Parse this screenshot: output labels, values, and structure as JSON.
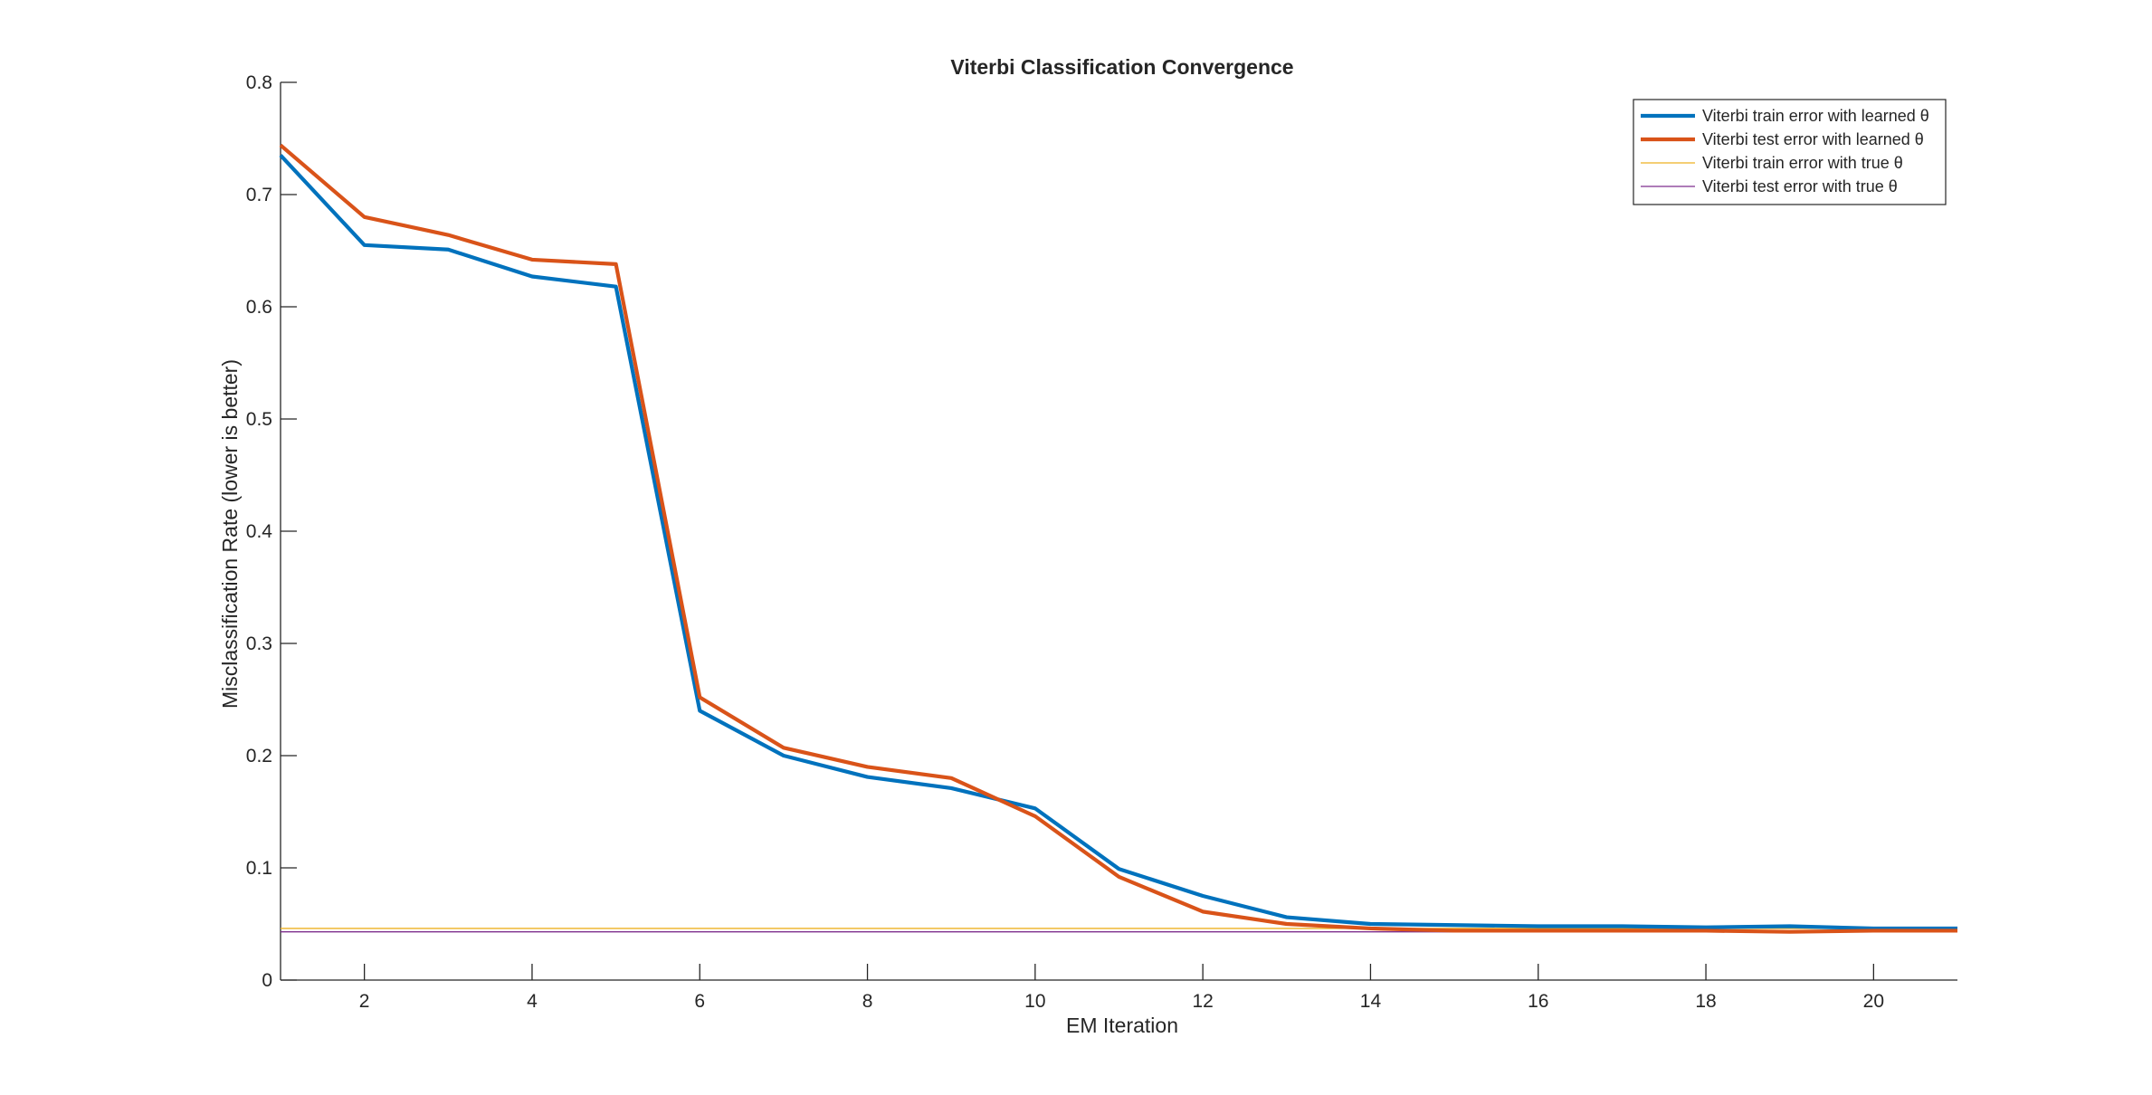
{
  "chart_data": {
    "type": "line",
    "title": "Viterbi Classification Convergence",
    "xlabel": "EM Iteration",
    "ylabel": "Misclassification Rate (lower is better)",
    "xlim": [
      1,
      21
    ],
    "ylim": [
      0,
      0.8
    ],
    "xticks": [
      2,
      4,
      6,
      8,
      10,
      12,
      14,
      16,
      18,
      20
    ],
    "yticks": [
      0,
      0.1,
      0.2,
      0.3,
      0.4,
      0.5,
      0.6,
      0.7,
      0.8
    ],
    "grid": false,
    "legend_position": "top-right",
    "x": [
      1,
      2,
      3,
      4,
      5,
      6,
      7,
      8,
      9,
      10,
      11,
      12,
      13,
      14,
      15,
      16,
      17,
      18,
      19,
      20,
      21
    ],
    "series": [
      {
        "name": "Viterbi train error with learned θ",
        "color": "#0072BD",
        "style": "thick",
        "values": [
          0.735,
          0.655,
          0.651,
          0.627,
          0.618,
          0.24,
          0.2,
          0.181,
          0.171,
          0.153,
          0.099,
          0.075,
          0.056,
          0.05,
          0.049,
          0.048,
          0.048,
          0.047,
          0.048,
          0.046,
          0.046
        ]
      },
      {
        "name": "Viterbi test error with learned θ",
        "color": "#D95319",
        "style": "thick",
        "values": [
          0.744,
          0.68,
          0.664,
          0.642,
          0.638,
          0.252,
          0.207,
          0.19,
          0.18,
          0.146,
          0.092,
          0.061,
          0.05,
          0.046,
          0.044,
          0.044,
          0.044,
          0.044,
          0.043,
          0.044,
          0.044
        ]
      },
      {
        "name": "Viterbi train error with true θ",
        "color": "#EDB120",
        "style": "thin",
        "values": [
          0.046,
          0.046,
          0.046,
          0.046,
          0.046,
          0.046,
          0.046,
          0.046,
          0.046,
          0.046,
          0.046,
          0.046,
          0.046,
          0.046,
          0.046,
          0.046,
          0.046,
          0.046,
          0.046,
          0.046,
          0.046
        ]
      },
      {
        "name": "Viterbi test error with true θ",
        "color": "#7E2F8E",
        "style": "thin",
        "values": [
          0.043,
          0.043,
          0.043,
          0.043,
          0.043,
          0.043,
          0.043,
          0.043,
          0.043,
          0.043,
          0.043,
          0.043,
          0.043,
          0.043,
          0.043,
          0.043,
          0.043,
          0.043,
          0.043,
          0.043,
          0.043
        ]
      }
    ]
  }
}
